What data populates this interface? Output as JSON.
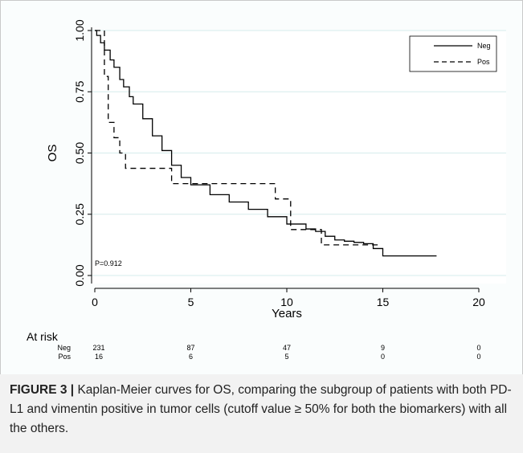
{
  "chart_data": {
    "type": "line",
    "title": "",
    "xlabel": "Years",
    "ylabel": "OS",
    "xlim": [
      0,
      20
    ],
    "ylim": [
      0,
      1
    ],
    "x_ticks": [
      "0",
      "5",
      "10",
      "15",
      "20"
    ],
    "y_ticks": [
      "0.00",
      "0.25",
      "0.50",
      "0.75",
      "1.00"
    ],
    "grid": true,
    "legend_position": "top-right",
    "annotation": "P=0.912",
    "series": [
      {
        "name": "Neg",
        "style": "solid",
        "x": [
          0,
          0.1,
          0.3,
          0.5,
          0.8,
          1.0,
          1.3,
          1.5,
          1.8,
          2.0,
          2.5,
          3.0,
          3.5,
          4.0,
          4.5,
          5.0,
          6.0,
          7.0,
          8.0,
          9.0,
          10.0,
          11.0,
          11.5,
          12.0,
          12.5,
          13.0,
          13.5,
          14.0,
          14.5,
          15.0,
          17.8
        ],
        "y": [
          1.0,
          0.98,
          0.95,
          0.92,
          0.88,
          0.85,
          0.8,
          0.77,
          0.73,
          0.7,
          0.64,
          0.57,
          0.51,
          0.45,
          0.4,
          0.37,
          0.33,
          0.3,
          0.27,
          0.24,
          0.21,
          0.19,
          0.18,
          0.16,
          0.145,
          0.14,
          0.135,
          0.13,
          0.11,
          0.08,
          0.08
        ]
      },
      {
        "name": "Pos",
        "style": "dashed",
        "x": [
          0,
          0.5,
          0.7,
          1.0,
          1.3,
          1.6,
          4.0,
          9.4,
          10.2,
          10.8,
          11.8,
          14.9
        ],
        "y": [
          1.0,
          0.8125,
          0.625,
          0.5625,
          0.5,
          0.4375,
          0.375,
          0.3125,
          0.1875,
          0.1875,
          0.125,
          0.125
        ]
      }
    ],
    "at_risk": {
      "header": "At risk",
      "times": [
        0,
        5,
        10,
        15,
        20
      ],
      "rows": [
        {
          "label": "Neg",
          "values": [
            "231",
            "87",
            "47",
            "9",
            "0"
          ]
        },
        {
          "label": "Pos",
          "values": [
            "16",
            "6",
            "5",
            "0",
            "0"
          ]
        }
      ]
    }
  },
  "caption": {
    "label": "FIGURE 3 |",
    "text": " Kaplan-Meier curves for OS, comparing the subgroup of patients with both PD-L1 and vimentin positive in tumor cells (cutoff value ≥ 50% for both the biomarkers) with all the others."
  }
}
